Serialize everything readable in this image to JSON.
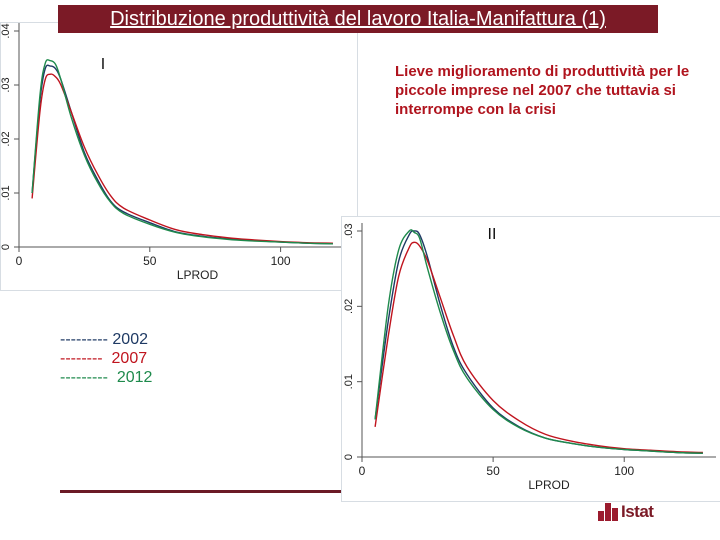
{
  "title": "Distribuzione produttività del lavoro Italia-Manifattura (1)",
  "legend": [
    {
      "dashes": "---------",
      "label": "2002",
      "color": "#1f3a64"
    },
    {
      "dashes": "--------",
      "label": "2007",
      "color": "#c0141e"
    },
    {
      "dashes": "---------",
      "label": "2012",
      "color": "#1e8a4c"
    }
  ],
  "annotation": "Lieve miglioramento di produttività per le piccole imprese nel 2007 che tuttavia si interrompe con la crisi",
  "logo": {
    "text": "Istat"
  },
  "colors": {
    "title_bg": "#7b1a26",
    "s2002": "#1f3a64",
    "s2007": "#c0141e",
    "s2012": "#1e8a4c"
  },
  "chart_data": [
    {
      "type": "line",
      "panel_label": "I",
      "xlabel": "LPROD",
      "ylabel": "",
      "xlim": [
        0,
        125
      ],
      "ylim": [
        0,
        0.04
      ],
      "xticks": [
        0,
        50,
        100
      ],
      "xtick_labels": [
        "0",
        "50",
        "100"
      ],
      "yticks": [
        0,
        0.01,
        0.02,
        0.03,
        0.04
      ],
      "ytick_labels": [
        "0",
        ".01",
        ".02",
        ".03",
        ".04"
      ],
      "series": [
        {
          "name": "2002",
          "color": "#1f3a64",
          "x": [
            5,
            8,
            10,
            12,
            14,
            16,
            20,
            25,
            30,
            35,
            40,
            50,
            60,
            70,
            80,
            90,
            100,
            110,
            120
          ],
          "y": [
            0.01,
            0.027,
            0.033,
            0.0335,
            0.033,
            0.031,
            0.025,
            0.0175,
            0.0125,
            0.0085,
            0.0065,
            0.0045,
            0.0028,
            0.002,
            0.0015,
            0.0012,
            0.0009,
            0.0007,
            0.0006
          ]
        },
        {
          "name": "2007",
          "color": "#c0141e",
          "x": [
            5,
            8,
            10,
            12,
            14,
            16,
            20,
            25,
            30,
            35,
            40,
            50,
            60,
            70,
            80,
            90,
            100,
            110,
            120
          ],
          "y": [
            0.009,
            0.025,
            0.031,
            0.032,
            0.0315,
            0.03,
            0.025,
            0.0185,
            0.0135,
            0.0095,
            0.0072,
            0.005,
            0.0032,
            0.0023,
            0.0017,
            0.0013,
            0.001,
            0.0008,
            0.0007
          ]
        },
        {
          "name": "2012",
          "color": "#1e8a4c",
          "x": [
            5,
            8,
            10,
            12,
            14,
            16,
            20,
            25,
            30,
            35,
            40,
            50,
            60,
            70,
            80,
            90,
            100,
            110,
            120
          ],
          "y": [
            0.01,
            0.028,
            0.034,
            0.0345,
            0.0338,
            0.031,
            0.024,
            0.017,
            0.012,
            0.0083,
            0.0062,
            0.0042,
            0.0027,
            0.0019,
            0.0014,
            0.0011,
            0.0009,
            0.0007,
            0.0006
          ]
        }
      ]
    },
    {
      "type": "line",
      "panel_label": "II",
      "xlabel": "LPROD",
      "ylabel": "",
      "xlim": [
        0,
        135
      ],
      "ylim": [
        0,
        0.03
      ],
      "xticks": [
        0,
        50,
        100
      ],
      "xtick_labels": [
        "0",
        "50",
        "100"
      ],
      "yticks": [
        0,
        0.01,
        0.02,
        0.03
      ],
      "ytick_labels": [
        "0",
        ".01",
        ".02",
        ".03"
      ],
      "series": [
        {
          "name": "2002",
          "color": "#1f3a64",
          "x": [
            5,
            10,
            14,
            18,
            20,
            22,
            25,
            30,
            35,
            40,
            50,
            60,
            70,
            80,
            90,
            100,
            110,
            120,
            130
          ],
          "y": [
            0.005,
            0.018,
            0.026,
            0.0295,
            0.03,
            0.0295,
            0.0265,
            0.02,
            0.0145,
            0.011,
            0.0065,
            0.004,
            0.0025,
            0.0018,
            0.0013,
            0.001,
            0.0008,
            0.0006,
            0.0005
          ]
        },
        {
          "name": "2007",
          "color": "#c0141e",
          "x": [
            5,
            10,
            14,
            18,
            20,
            22,
            25,
            30,
            35,
            40,
            50,
            60,
            70,
            80,
            90,
            100,
            110,
            120,
            130
          ],
          "y": [
            0.004,
            0.016,
            0.024,
            0.0278,
            0.0285,
            0.028,
            0.026,
            0.021,
            0.016,
            0.012,
            0.0075,
            0.0048,
            0.003,
            0.0021,
            0.0015,
            0.0011,
            0.0009,
            0.0007,
            0.0006
          ]
        },
        {
          "name": "2012",
          "color": "#1e8a4c",
          "x": [
            5,
            10,
            14,
            18,
            20,
            22,
            25,
            30,
            35,
            40,
            50,
            60,
            70,
            80,
            90,
            100,
            110,
            120,
            130
          ],
          "y": [
            0.005,
            0.02,
            0.0275,
            0.03,
            0.0298,
            0.029,
            0.025,
            0.019,
            0.014,
            0.0105,
            0.0063,
            0.0039,
            0.0025,
            0.0018,
            0.0013,
            0.001,
            0.0008,
            0.0006,
            0.0005
          ]
        }
      ]
    }
  ]
}
